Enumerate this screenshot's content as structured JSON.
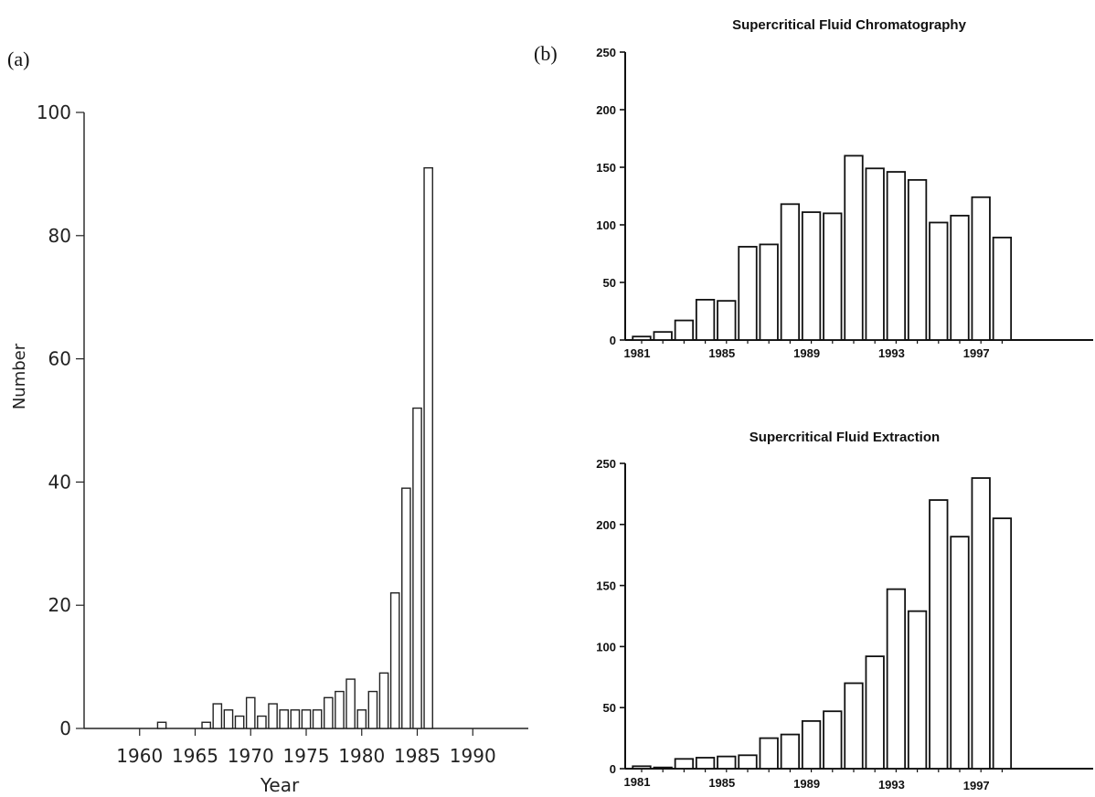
{
  "panel_labels": {
    "a": "(a)",
    "b": "(b)"
  },
  "chart_data": [
    {
      "id": "a",
      "type": "bar",
      "title": "",
      "xlabel": "Year",
      "ylabel": "Number",
      "xlim": [
        1955,
        1995
      ],
      "ylim": [
        0,
        100
      ],
      "xticks": [
        1960,
        1965,
        1970,
        1975,
        1980,
        1985,
        1990
      ],
      "yticks": [
        0,
        20,
        40,
        60,
        80,
        100
      ],
      "x": [
        1962,
        1966,
        1967,
        1968,
        1969,
        1970,
        1971,
        1972,
        1973,
        1974,
        1975,
        1976,
        1977,
        1978,
        1979,
        1980,
        1981,
        1982,
        1983,
        1984,
        1985,
        1986
      ],
      "values": [
        1,
        1,
        4,
        3,
        2,
        5,
        2,
        4,
        3,
        3,
        3,
        3,
        5,
        6,
        8,
        3,
        6,
        9,
        22,
        39,
        52,
        91
      ],
      "grid": false,
      "legend": "none"
    },
    {
      "id": "b1",
      "type": "bar",
      "title": "Supercritical Fluid Chromatography",
      "xlabel": "",
      "ylabel": "",
      "ylim": [
        0,
        250
      ],
      "yticks": [
        0,
        50,
        100,
        150,
        200,
        250
      ],
      "xticks": [
        1981,
        1985,
        1989,
        1993,
        1997
      ],
      "x": [
        1981,
        1982,
        1983,
        1984,
        1985,
        1986,
        1987,
        1988,
        1989,
        1990,
        1991,
        1992,
        1993,
        1994,
        1995,
        1996,
        1997,
        1998
      ],
      "values": [
        3,
        7,
        17,
        35,
        34,
        81,
        83,
        118,
        111,
        110,
        160,
        149,
        146,
        139,
        102,
        108,
        124,
        89
      ],
      "grid": false,
      "legend": "none"
    },
    {
      "id": "b2",
      "type": "bar",
      "title": "Supercritical Fluid Extraction",
      "xlabel": "",
      "ylabel": "",
      "ylim": [
        0,
        250
      ],
      "yticks": [
        0,
        50,
        100,
        150,
        200,
        250
      ],
      "xticks": [
        1981,
        1985,
        1989,
        1993,
        1997
      ],
      "x": [
        1981,
        1982,
        1983,
        1984,
        1985,
        1986,
        1987,
        1988,
        1989,
        1990,
        1991,
        1992,
        1993,
        1994,
        1995,
        1996,
        1997,
        1998
      ],
      "values": [
        2,
        1,
        8,
        9,
        10,
        11,
        25,
        28,
        39,
        47,
        70,
        92,
        147,
        129,
        220,
        190,
        238,
        205
      ],
      "grid": false,
      "legend": "none"
    }
  ]
}
